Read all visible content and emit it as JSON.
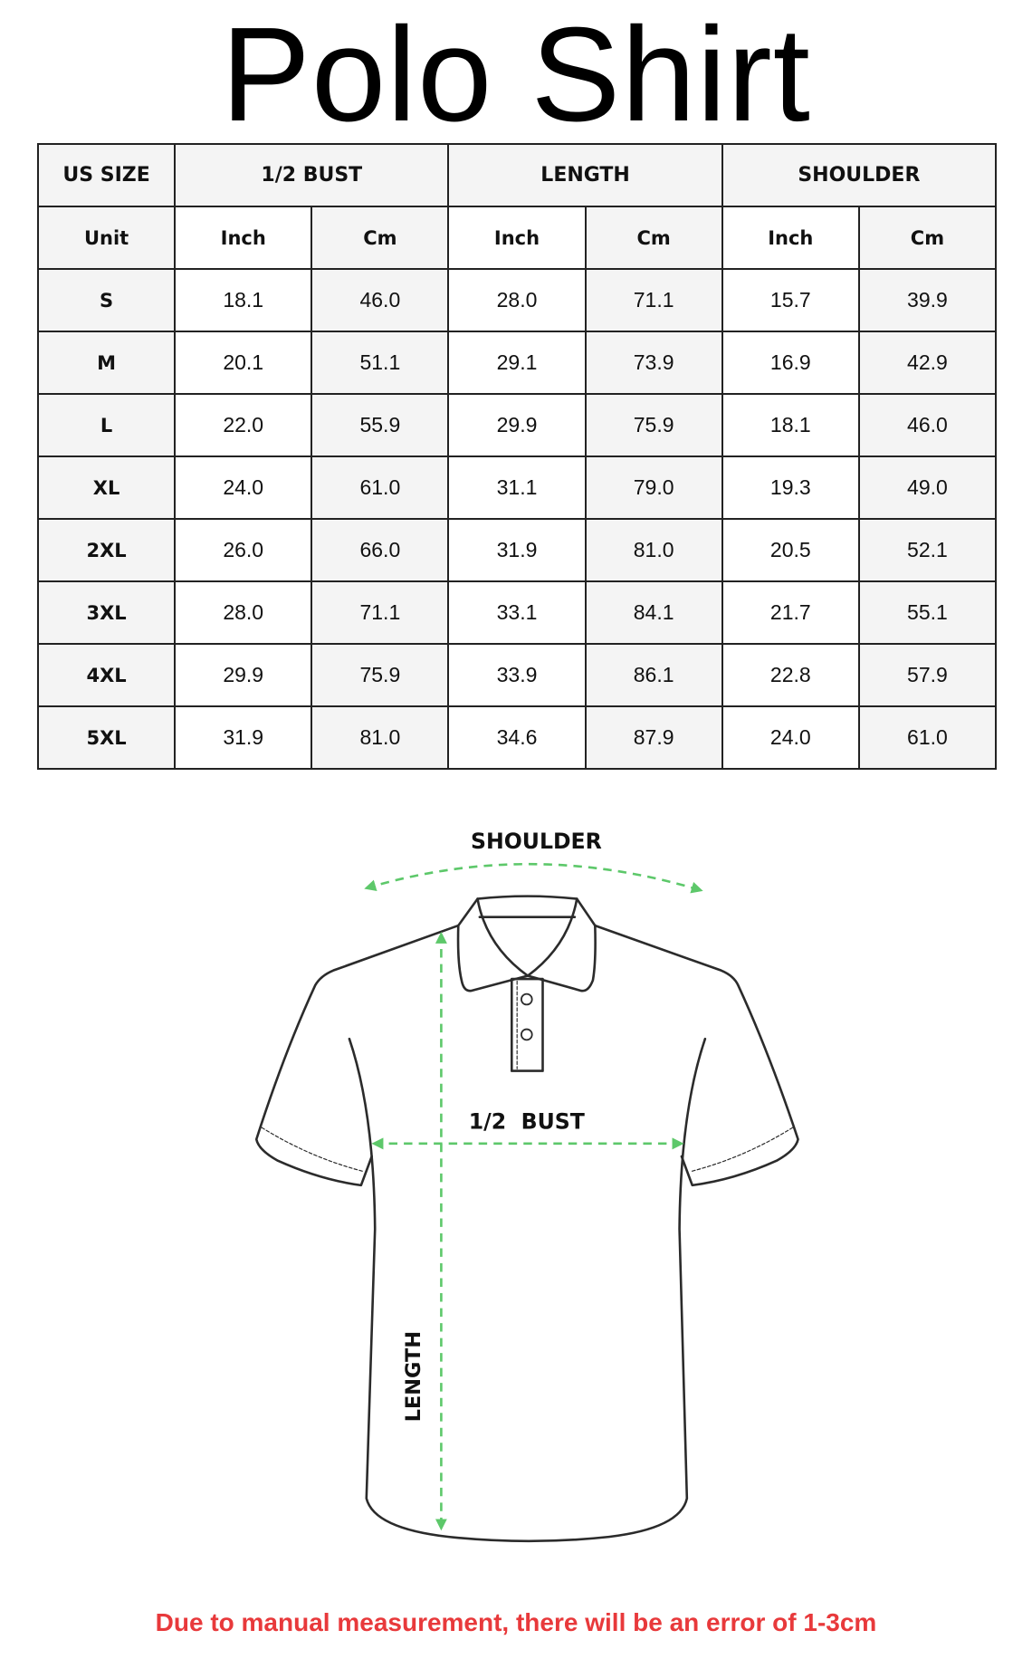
{
  "title": "Polo Shirt",
  "table": {
    "group_headers": [
      "US SIZE",
      "1/2 BUST",
      "LENGTH",
      "SHOULDER"
    ],
    "unit_label": "Unit",
    "units": [
      "Inch",
      "Cm",
      "Inch",
      "Cm",
      "Inch",
      "Cm"
    ],
    "rows": [
      {
        "size": "S",
        "values": [
          "18.1",
          "46.0",
          "28.0",
          "71.1",
          "15.7",
          "39.9"
        ]
      },
      {
        "size": "M",
        "values": [
          "20.1",
          "51.1",
          "29.1",
          "73.9",
          "16.9",
          "42.9"
        ]
      },
      {
        "size": "L",
        "values": [
          "22.0",
          "55.9",
          "29.9",
          "75.9",
          "18.1",
          "46.0"
        ]
      },
      {
        "size": "XL",
        "values": [
          "24.0",
          "61.0",
          "31.1",
          "79.0",
          "19.3",
          "49.0"
        ]
      },
      {
        "size": "2XL",
        "values": [
          "26.0",
          "66.0",
          "31.9",
          "81.0",
          "20.5",
          "52.1"
        ]
      },
      {
        "size": "3XL",
        "values": [
          "28.0",
          "71.1",
          "33.1",
          "84.1",
          "21.7",
          "55.1"
        ]
      },
      {
        "size": "4XL",
        "values": [
          "29.9",
          "75.9",
          "33.9",
          "86.1",
          "22.8",
          "57.9"
        ]
      },
      {
        "size": "5XL",
        "values": [
          "31.9",
          "81.0",
          "34.6",
          "87.9",
          "24.0",
          "61.0"
        ]
      }
    ]
  },
  "diagram": {
    "shoulder_label": "SHOULDER",
    "bust_label": "1/2  BUST",
    "length_label": "LENGTH",
    "arrow_color": "#5DC86A",
    "outline_color": "#2b2b2b"
  },
  "footer": {
    "note": "Due to manual measurement, there will be an error of 1-3cm",
    "color": "#E8393B"
  }
}
